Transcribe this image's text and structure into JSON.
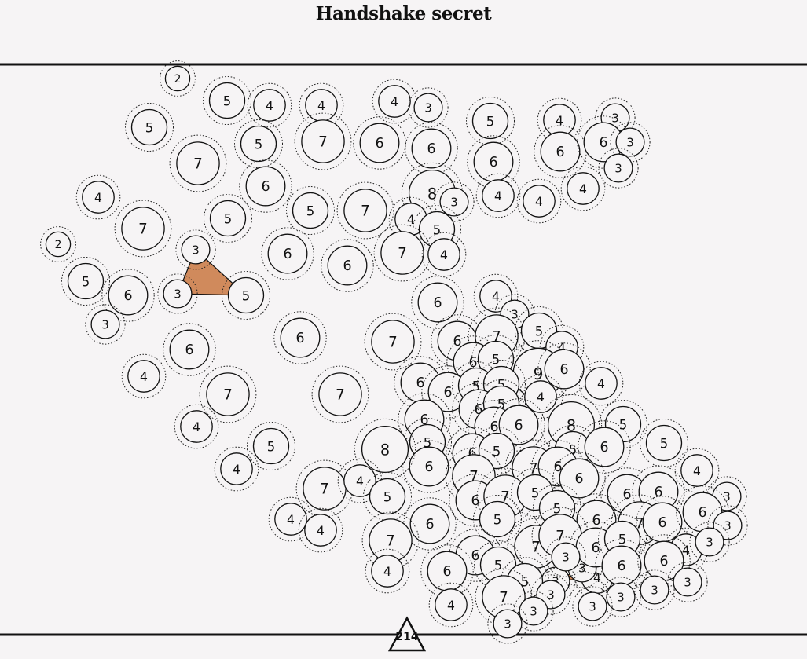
{
  "title": "Handshake secret",
  "counter": "214",
  "colors": {
    "background": "#f6f4f5",
    "line": "#111111",
    "fill": "#d08a5c"
  },
  "triangles": [
    [
      0,
      1,
      2
    ],
    [
      3,
      4,
      5
    ]
  ],
  "nodes": [
    [
      249,
      318,
      3
    ],
    [
      226,
      374,
      3
    ],
    [
      313,
      376,
      5
    ],
    [
      760,
      735,
      4
    ],
    [
      741,
      723,
      3
    ],
    [
      707,
      740,
      3
    ],
    [
      226,
      100,
      2
    ],
    [
      289,
      128,
      5
    ],
    [
      343,
      134,
      4
    ],
    [
      409,
      134,
      4
    ],
    [
      502,
      129,
      4
    ],
    [
      545,
      137,
      3
    ],
    [
      190,
      162,
      5
    ],
    [
      329,
      183,
      5
    ],
    [
      411,
      180,
      7
    ],
    [
      483,
      182,
      6
    ],
    [
      549,
      189,
      6
    ],
    [
      624,
      154,
      5
    ],
    [
      628,
      206,
      6
    ],
    [
      712,
      153,
      4
    ],
    [
      783,
      150,
      3
    ],
    [
      713,
      193,
      6
    ],
    [
      768,
      181,
      6
    ],
    [
      802,
      181,
      3
    ],
    [
      787,
      214,
      3
    ],
    [
      252,
      208,
      7
    ],
    [
      338,
      237,
      6
    ],
    [
      550,
      246,
      8
    ],
    [
      578,
      257,
      3
    ],
    [
      634,
      249,
      4
    ],
    [
      686,
      256,
      4
    ],
    [
      742,
      240,
      4
    ],
    [
      125,
      251,
      4
    ],
    [
      182,
      291,
      7
    ],
    [
      290,
      278,
      5
    ],
    [
      395,
      268,
      5
    ],
    [
      465,
      268,
      7
    ],
    [
      523,
      279,
      4
    ],
    [
      556,
      292,
      5
    ],
    [
      74,
      311,
      2
    ],
    [
      366,
      323,
      6
    ],
    [
      442,
      338,
      6
    ],
    [
      512,
      322,
      7
    ],
    [
      565,
      324,
      4
    ],
    [
      109,
      358,
      5
    ],
    [
      163,
      376,
      6
    ],
    [
      134,
      413,
      3
    ],
    [
      557,
      385,
      6
    ],
    [
      631,
      377,
      4
    ],
    [
      655,
      400,
      3
    ],
    [
      241,
      445,
      6
    ],
    [
      382,
      430,
      6
    ],
    [
      500,
      435,
      7
    ],
    [
      582,
      434,
      6
    ],
    [
      632,
      428,
      7
    ],
    [
      686,
      421,
      5
    ],
    [
      715,
      442,
      4
    ],
    [
      602,
      461,
      6
    ],
    [
      631,
      457,
      5
    ],
    [
      685,
      475,
      9
    ],
    [
      718,
      470,
      6
    ],
    [
      183,
      479,
      4
    ],
    [
      290,
      502,
      7
    ],
    [
      433,
      502,
      7
    ],
    [
      535,
      487,
      6
    ],
    [
      570,
      499,
      6
    ],
    [
      606,
      491,
      5
    ],
    [
      638,
      489,
      5
    ],
    [
      688,
      505,
      4
    ],
    [
      765,
      488,
      4
    ],
    [
      250,
      543,
      4
    ],
    [
      345,
      568,
      5
    ],
    [
      609,
      521,
      6
    ],
    [
      638,
      514,
      5
    ],
    [
      540,
      534,
      6
    ],
    [
      629,
      543,
      6
    ],
    [
      660,
      541,
      6
    ],
    [
      727,
      541,
      8
    ],
    [
      793,
      540,
      5
    ],
    [
      544,
      563,
      5
    ],
    [
      546,
      594,
      6
    ],
    [
      490,
      572,
      8
    ],
    [
      601,
      577,
      6
    ],
    [
      632,
      574,
      5
    ],
    [
      729,
      572,
      5
    ],
    [
      769,
      569,
      6
    ],
    [
      845,
      564,
      5
    ],
    [
      301,
      597,
      4
    ],
    [
      603,
      606,
      7
    ],
    [
      679,
      596,
      7
    ],
    [
      710,
      594,
      6
    ],
    [
      737,
      609,
      6
    ],
    [
      887,
      599,
      4
    ],
    [
      413,
      622,
      7
    ],
    [
      458,
      612,
      4
    ],
    [
      493,
      632,
      5
    ],
    [
      605,
      637,
      6
    ],
    [
      643,
      632,
      7
    ],
    [
      681,
      627,
      5
    ],
    [
      709,
      647,
      5
    ],
    [
      798,
      629,
      6
    ],
    [
      838,
      626,
      6
    ],
    [
      925,
      632,
      3
    ],
    [
      370,
      661,
      4
    ],
    [
      408,
      675,
      4
    ],
    [
      547,
      667,
      6
    ],
    [
      633,
      661,
      5
    ],
    [
      759,
      662,
      6
    ],
    [
      814,
      666,
      7
    ],
    [
      843,
      665,
      6
    ],
    [
      894,
      652,
      6
    ],
    [
      926,
      669,
      3
    ],
    [
      497,
      688,
      7
    ],
    [
      682,
      696,
      7
    ],
    [
      713,
      682,
      7
    ],
    [
      758,
      697,
      6
    ],
    [
      792,
      686,
      5
    ],
    [
      873,
      700,
      4
    ],
    [
      903,
      690,
      3
    ],
    [
      605,
      707,
      6
    ],
    [
      634,
      719,
      5
    ],
    [
      791,
      720,
      6
    ],
    [
      845,
      714,
      6
    ],
    [
      493,
      727,
      4
    ],
    [
      569,
      727,
      6
    ],
    [
      668,
      740,
      5
    ],
    [
      720,
      709,
      3
    ],
    [
      875,
      741,
      3
    ],
    [
      833,
      751,
      3
    ],
    [
      641,
      760,
      7
    ],
    [
      701,
      757,
      3
    ],
    [
      790,
      760,
      3
    ],
    [
      754,
      772,
      3
    ],
    [
      574,
      770,
      4
    ],
    [
      679,
      778,
      3
    ],
    [
      646,
      794,
      3
    ]
  ]
}
